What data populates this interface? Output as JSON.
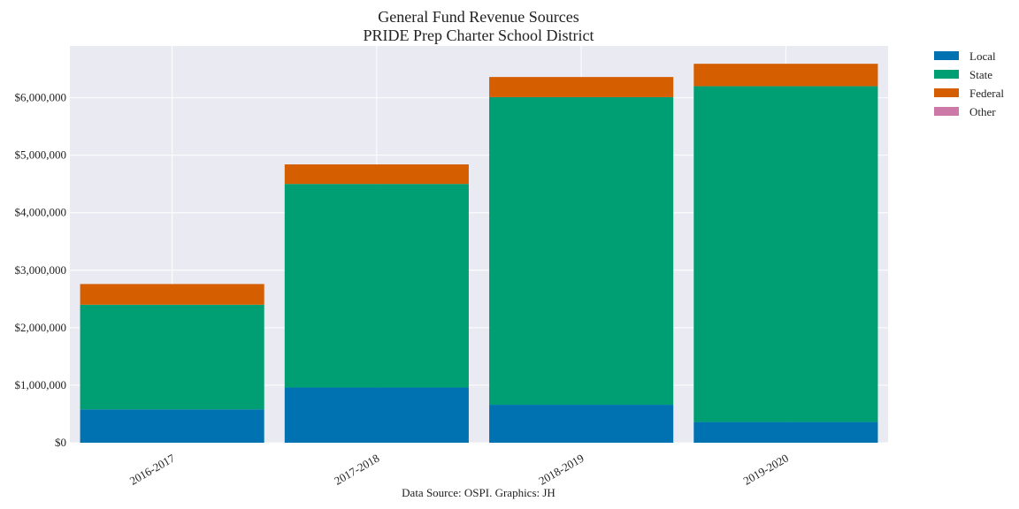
{
  "chart_data": {
    "type": "bar",
    "stacked": true,
    "title": "General Fund Revenue Sources",
    "subtitle": "PRIDE Prep Charter School District",
    "footnote": "Data Source: OSPI. Graphics: JH",
    "categories": [
      "2016-2017",
      "2017-2018",
      "2018-2019",
      "2019-2020"
    ],
    "series": [
      {
        "name": "Local",
        "color": "#0072b2",
        "values": [
          580000,
          960000,
          660000,
          360000
        ]
      },
      {
        "name": "State",
        "color": "#009e73",
        "values": [
          1820000,
          3540000,
          5350000,
          5840000
        ]
      },
      {
        "name": "Federal",
        "color": "#d55e00",
        "values": [
          360000,
          340000,
          350000,
          390000
        ]
      },
      {
        "name": "Other",
        "color": "#cc79a7",
        "values": [
          0,
          0,
          0,
          0
        ]
      }
    ],
    "ylim": [
      0,
      6900000
    ],
    "yticks": [
      0,
      1000000,
      2000000,
      3000000,
      4000000,
      5000000,
      6000000
    ],
    "ytick_labels": [
      "$0",
      "$1,000,000",
      "$2,000,000",
      "$3,000,000",
      "$4,000,000",
      "$5,000,000",
      "$6,000,000"
    ],
    "xlabel": "",
    "ylabel": "",
    "grid": true,
    "legend_position": "outside-top-right",
    "background_color": "#eaeaf2"
  }
}
